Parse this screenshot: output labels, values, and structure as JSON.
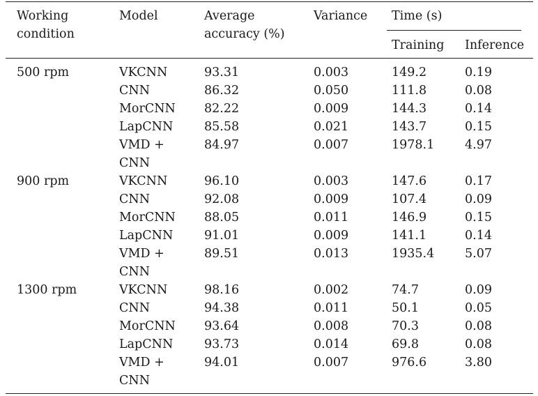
{
  "header": {
    "working_condition": [
      "Working",
      "condition"
    ],
    "model": "Model",
    "average_accuracy": [
      "Average",
      "accuracy (%)"
    ],
    "variance": "Variance",
    "time": "Time (s)",
    "training": "Training",
    "inference": "Inference"
  },
  "groups": [
    {
      "condition": "500 rpm",
      "rows": [
        {
          "model": [
            "VKCNN"
          ],
          "accuracy": "93.31",
          "variance": "0.003",
          "training": "149.2",
          "inference": "0.19"
        },
        {
          "model": [
            "CNN"
          ],
          "accuracy": "86.32",
          "variance": "0.050",
          "training": "111.8",
          "inference": "0.08"
        },
        {
          "model": [
            "MorCNN"
          ],
          "accuracy": "82.22",
          "variance": "0.009",
          "training": "144.3",
          "inference": "0.14"
        },
        {
          "model": [
            "LapCNN"
          ],
          "accuracy": "85.58",
          "variance": "0.021",
          "training": "143.7",
          "inference": "0.15"
        },
        {
          "model": [
            "VMD +",
            "CNN"
          ],
          "accuracy": "84.97",
          "variance": "0.007",
          "training": "1978.1",
          "inference": "4.97"
        }
      ]
    },
    {
      "condition": "900 rpm",
      "rows": [
        {
          "model": [
            "VKCNN"
          ],
          "accuracy": "96.10",
          "variance": "0.003",
          "training": "147.6",
          "inference": "0.17"
        },
        {
          "model": [
            "CNN"
          ],
          "accuracy": "92.08",
          "variance": "0.009",
          "training": "107.4",
          "inference": "0.09"
        },
        {
          "model": [
            "MorCNN"
          ],
          "accuracy": "88.05",
          "variance": "0.011",
          "training": "146.9",
          "inference": "0.15"
        },
        {
          "model": [
            "LapCNN"
          ],
          "accuracy": "91.01",
          "variance": "0.009",
          "training": "141.1",
          "inference": "0.14"
        },
        {
          "model": [
            "VMD +",
            "CNN"
          ],
          "accuracy": "89.51",
          "variance": "0.013",
          "training": "1935.4",
          "inference": "5.07"
        }
      ]
    },
    {
      "condition": "1300 rpm",
      "rows": [
        {
          "model": [
            "VKCNN"
          ],
          "accuracy": "98.16",
          "variance": "0.002",
          "training": "74.7",
          "inference": "0.09"
        },
        {
          "model": [
            "CNN"
          ],
          "accuracy": "94.38",
          "variance": "0.011",
          "training": "50.1",
          "inference": "0.05"
        },
        {
          "model": [
            "MorCNN"
          ],
          "accuracy": "93.64",
          "variance": "0.008",
          "training": "70.3",
          "inference": "0.08"
        },
        {
          "model": [
            "LapCNN"
          ],
          "accuracy": "93.73",
          "variance": "0.014",
          "training": "69.8",
          "inference": "0.08"
        },
        {
          "model": [
            "VMD +",
            "CNN"
          ],
          "accuracy": "94.01",
          "variance": "0.007",
          "training": "976.6",
          "inference": "3.80"
        }
      ]
    }
  ]
}
